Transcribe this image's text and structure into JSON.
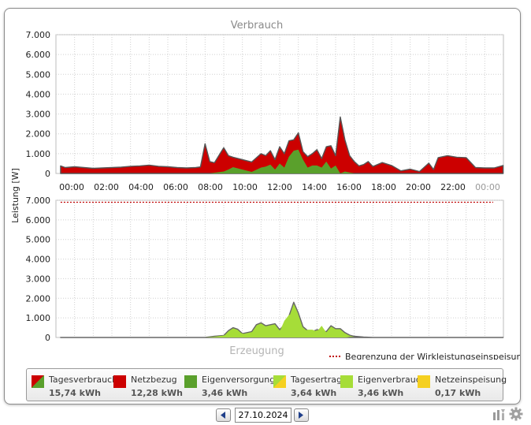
{
  "chart_data": [
    {
      "type": "area",
      "title": "Verbrauch",
      "ylabel": "Leistung [W]",
      "ylim": [
        0,
        7000
      ],
      "yticks": [
        0,
        1000,
        2000,
        3000,
        4000,
        5000,
        6000,
        7000
      ],
      "ytick_labels": [
        "0",
        "1.000",
        "2.000",
        "3.000",
        "4.000",
        "5.000",
        "6.000",
        "7.000"
      ],
      "xlim": [
        "00:00",
        "24:00"
      ],
      "xtick_labels": [
        "00:00",
        "02:00",
        "04:00",
        "06:00",
        "08:00",
        "10:00",
        "12:00",
        "14:00",
        "16:00",
        "18:00",
        "20:00",
        "22:00",
        "00:00"
      ],
      "grid": true,
      "x": [
        "00:15",
        "00:30",
        "01:00",
        "01:30",
        "02:00",
        "02:30",
        "03:00",
        "03:30",
        "04:00",
        "04:30",
        "05:00",
        "05:30",
        "06:00",
        "06:30",
        "07:00",
        "07:30",
        "07:45",
        "08:00",
        "08:15",
        "08:30",
        "09:00",
        "09:15",
        "09:30",
        "10:00",
        "10:30",
        "11:00",
        "11:15",
        "11:30",
        "11:45",
        "12:00",
        "12:15",
        "12:30",
        "12:45",
        "13:00",
        "13:15",
        "13:30",
        "13:45",
        "14:00",
        "14:15",
        "14:30",
        "14:45",
        "15:00",
        "15:15",
        "15:30",
        "15:45",
        "16:00",
        "16:15",
        "16:30",
        "16:45",
        "17:00",
        "17:30",
        "18:00",
        "18:30",
        "19:00",
        "19:30",
        "20:00",
        "20:15",
        "20:30",
        "21:00",
        "21:30",
        "22:00",
        "22:30",
        "23:00",
        "23:30",
        "23:59"
      ],
      "series": [
        {
          "name": "Tagesverbrauch",
          "values": [
            380,
            300,
            340,
            300,
            260,
            280,
            300,
            320,
            360,
            380,
            420,
            360,
            340,
            300,
            280,
            300,
            330,
            1500,
            600,
            540,
            1300,
            900,
            820,
            700,
            580,
            1000,
            900,
            1150,
            700,
            1350,
            1000,
            1650,
            1700,
            2050,
            1100,
            850,
            1000,
            1200,
            750,
            1350,
            1400,
            900,
            2850,
            1700,
            900,
            600,
            380,
            450,
            600,
            350,
            550,
            400,
            130,
            220,
            100,
            520,
            200,
            800,
            900,
            820,
            800,
            300,
            280,
            280,
            400
          ]
        },
        {
          "name": "Netzbezug",
          "values": [
            380,
            300,
            340,
            300,
            260,
            280,
            300,
            320,
            360,
            380,
            420,
            360,
            340,
            300,
            280,
            300,
            330,
            1500,
            600,
            500,
            1200,
            700,
            500,
            500,
            500,
            700,
            550,
            700,
            500,
            850,
            700,
            800,
            550,
            850,
            400,
            550,
            600,
            800,
            450,
            750,
            1150,
            500,
            2850,
            1600,
            850,
            600,
            380,
            450,
            600,
            350,
            550,
            400,
            130,
            220,
            100,
            520,
            200,
            800,
            900,
            820,
            800,
            300,
            280,
            280,
            400
          ]
        },
        {
          "name": "Eigenversorgung",
          "values": [
            0,
            0,
            0,
            0,
            0,
            0,
            0,
            0,
            0,
            0,
            0,
            0,
            0,
            0,
            0,
            0,
            0,
            0,
            0,
            40,
            100,
            200,
            320,
            200,
            80,
            300,
            350,
            450,
            200,
            500,
            300,
            850,
            1150,
            1200,
            700,
            300,
            400,
            400,
            300,
            600,
            250,
            400,
            0,
            100,
            50,
            0,
            0,
            0,
            0,
            0,
            0,
            0,
            0,
            0,
            0,
            0,
            0,
            0,
            0,
            0,
            0,
            0,
            0,
            0,
            0
          ]
        }
      ]
    },
    {
      "type": "area",
      "title": "Erzeugung",
      "ylabel": "Leistung [W]",
      "ylim": [
        0,
        7000
      ],
      "yticks": [
        0,
        1000,
        2000,
        3000,
        4000,
        5000,
        6000,
        7000
      ],
      "ytick_labels": [
        "0",
        "1.000",
        "2.000",
        "3.000",
        "4.000",
        "5.000",
        "6.000",
        "7.000"
      ],
      "xlim": [
        "00:00",
        "24:00"
      ],
      "grid": true,
      "limit_line": {
        "name": "Begrenzung der Wirkleistungseinspeisung",
        "value": 6900,
        "color": "#c00000"
      },
      "x": [
        "00:15",
        "08:00",
        "08:30",
        "09:00",
        "09:15",
        "09:30",
        "09:45",
        "10:00",
        "10:30",
        "10:45",
        "11:00",
        "11:15",
        "11:30",
        "11:45",
        "12:00",
        "12:15",
        "12:30",
        "12:45",
        "13:00",
        "13:15",
        "13:30",
        "13:45",
        "14:00",
        "14:15",
        "14:30",
        "14:45",
        "15:00",
        "15:15",
        "15:30",
        "15:45",
        "16:00",
        "16:30",
        "17:00",
        "17:30",
        "18:00",
        "23:59"
      ],
      "series": [
        {
          "name": "Tagesertrag",
          "values": [
            0,
            0,
            60,
            100,
            350,
            500,
            420,
            200,
            300,
            650,
            750,
            600,
            650,
            700,
            400,
            650,
            1100,
            1800,
            1250,
            550,
            350,
            300,
            400,
            350,
            300,
            600,
            450,
            450,
            250,
            120,
            60,
            20,
            0,
            0,
            0,
            0
          ]
        },
        {
          "name": "Eigenverbrauch",
          "values": [
            0,
            0,
            40,
            100,
            200,
            320,
            300,
            200,
            80,
            300,
            350,
            450,
            200,
            500,
            300,
            850,
            1150,
            1200,
            700,
            300,
            400,
            400,
            300,
            600,
            250,
            400,
            50,
            100,
            50,
            0,
            0,
            0,
            0,
            0,
            0,
            0
          ]
        }
      ]
    }
  ],
  "legend": [
    {
      "label": "Tagesverbrauch",
      "value": "15,74 kWh",
      "icon": "split-red-green",
      "color": "#cc0000",
      "color2": "#5aa02c"
    },
    {
      "label": "Netzbezug",
      "value": "12,28 kWh",
      "icon": "square",
      "color": "#cc0000"
    },
    {
      "label": "Eigenversorgung",
      "value": "3,46 kWh",
      "icon": "square",
      "color": "#5aa02c"
    },
    {
      "label": "Tagesertrag",
      "value": "3,64 kWh",
      "icon": "split-green-yellow",
      "color": "#a6dd38",
      "color2": "#f5d020"
    },
    {
      "label": "Eigenverbrauch",
      "value": "3,46 kWh",
      "icon": "square",
      "color": "#a6dd38"
    },
    {
      "label": "Netzeinspeisung",
      "value": "0,17 kWh",
      "icon": "square",
      "color": "#f5d020"
    }
  ],
  "date_nav": {
    "date": "27.10.2024",
    "prev_icon": "triangle-left-icon",
    "next_icon": "triangle-right-icon"
  },
  "tools": {
    "icons": [
      "sort-icon",
      "gear-icon"
    ]
  },
  "colors": {
    "netzbezug": "#cc0000",
    "eigenversorgung": "#5aa02c",
    "tagesertrag": "#a6dd38",
    "outline": "#555555",
    "grid": "#cccccc"
  }
}
